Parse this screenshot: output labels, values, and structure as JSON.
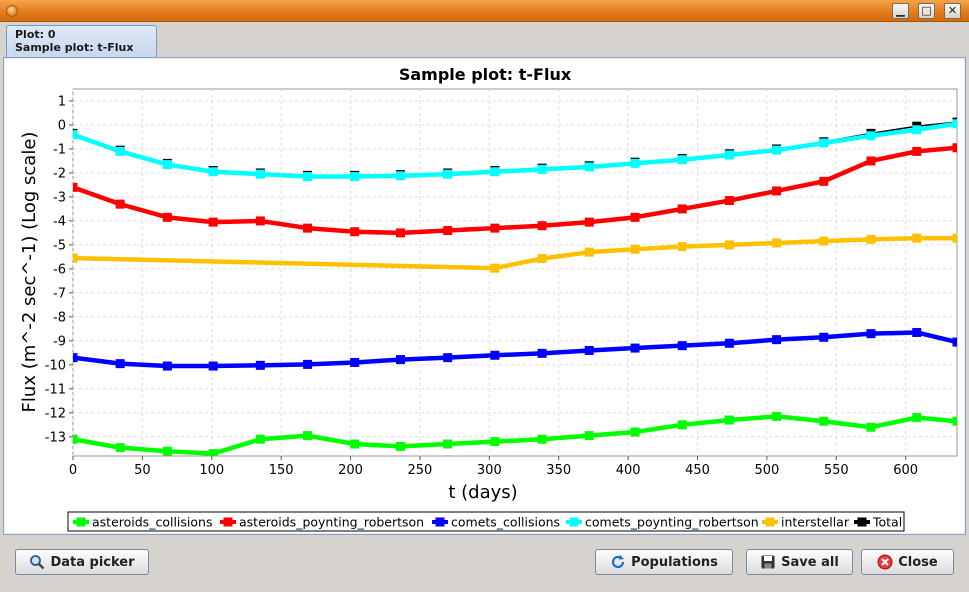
{
  "window": {
    "min_glyph": "▁",
    "max_glyph": "□",
    "close_glyph": "✕"
  },
  "tab": {
    "line1": "Plot: 0",
    "line2": "Sample plot: t-Flux"
  },
  "buttons": {
    "data_picker": "Data picker",
    "populations": "Populations",
    "save_all": "Save all",
    "close": "Close"
  },
  "chart_data": {
    "type": "line",
    "title": "Sample plot: t-Flux",
    "xlabel": "t (days)",
    "ylabel": "Flux (m^-2 sec^-1) (Log scale)",
    "xlim": [
      0,
      637
    ],
    "ylim": [
      -13.8,
      1.5
    ],
    "xticks": [
      0,
      50,
      100,
      150,
      200,
      250,
      300,
      350,
      400,
      450,
      500,
      550,
      600
    ],
    "yticks": [
      1,
      0,
      -1,
      -2,
      -3,
      -4,
      -5,
      -6,
      -7,
      -8,
      -9,
      -10,
      -11,
      -12,
      -13
    ],
    "grid": true,
    "legend_placement": "bottom",
    "x": [
      0,
      34,
      68,
      101,
      135,
      169,
      203,
      236,
      270,
      304,
      338,
      372,
      405,
      439,
      473,
      507,
      541,
      575,
      608,
      637
    ],
    "series": [
      {
        "name": "asteroids_collisions",
        "color": "#00ff00",
        "x": [
          0,
          34,
          68,
          101,
          135,
          169,
          203,
          236,
          270,
          304,
          338,
          372,
          405,
          439,
          473,
          507,
          541,
          575,
          608,
          637
        ],
        "values": [
          -13.1,
          -13.45,
          -13.6,
          -13.7,
          -13.1,
          -12.95,
          -13.3,
          -13.4,
          -13.3,
          -13.2,
          -13.1,
          -12.95,
          -12.8,
          -12.5,
          -12.3,
          -12.15,
          -12.35,
          -12.6,
          -12.2,
          -12.35
        ]
      },
      {
        "name": "asteroids_poynting_robertson",
        "color": "#ff0000",
        "x": [
          0,
          34,
          68,
          101,
          135,
          169,
          203,
          236,
          270,
          304,
          338,
          372,
          405,
          439,
          473,
          507,
          541,
          575,
          608,
          637
        ],
        "values": [
          -2.6,
          -3.3,
          -3.85,
          -4.05,
          -4.0,
          -4.3,
          -4.45,
          -4.5,
          -4.4,
          -4.3,
          -4.2,
          -4.05,
          -3.85,
          -3.5,
          -3.15,
          -2.75,
          -2.35,
          -1.5,
          -1.1,
          -0.95
        ]
      },
      {
        "name": "comets_collisions",
        "color": "#0000ff",
        "x": [
          0,
          34,
          68,
          101,
          135,
          169,
          203,
          236,
          270,
          304,
          338,
          372,
          405,
          439,
          473,
          507,
          541,
          575,
          608,
          637
        ],
        "values": [
          -9.7,
          -9.95,
          -10.05,
          -10.05,
          -10.02,
          -9.98,
          -9.9,
          -9.78,
          -9.7,
          -9.6,
          -9.52,
          -9.4,
          -9.3,
          -9.2,
          -9.1,
          -8.95,
          -8.85,
          -8.7,
          -8.65,
          -9.05
        ]
      },
      {
        "name": "comets_poynting_robertson",
        "color": "#00ffff",
        "x": [
          0,
          34,
          68,
          101,
          135,
          169,
          203,
          236,
          270,
          304,
          338,
          372,
          405,
          439,
          473,
          507,
          541,
          575,
          608,
          637
        ],
        "values": [
          -0.4,
          -1.1,
          -1.65,
          -1.95,
          -2.05,
          -2.15,
          -2.15,
          -2.12,
          -2.05,
          -1.95,
          -1.85,
          -1.75,
          -1.6,
          -1.45,
          -1.25,
          -1.05,
          -0.75,
          -0.45,
          -0.2,
          0.05
        ]
      },
      {
        "name": "interstellar",
        "color": "#ffc000",
        "x": [
          0,
          304,
          338,
          372,
          405,
          439,
          473,
          507,
          541,
          575,
          608,
          637
        ],
        "values": [
          -5.55,
          -5.97,
          -5.57,
          -5.3,
          -5.18,
          -5.07,
          -5.0,
          -4.92,
          -4.84,
          -4.77,
          -4.72,
          -4.72
        ]
      },
      {
        "name": "Total",
        "color": "#000000",
        "x": [
          0,
          34,
          68,
          101,
          135,
          169,
          203,
          236,
          270,
          304,
          338,
          372,
          405,
          439,
          473,
          507,
          541,
          575,
          608,
          637
        ],
        "values": [
          -0.35,
          -1.05,
          -1.6,
          -1.9,
          -2.0,
          -2.1,
          -2.1,
          -2.07,
          -2.0,
          -1.9,
          -1.8,
          -1.7,
          -1.55,
          -1.4,
          -1.2,
          -1.0,
          -0.7,
          -0.35,
          -0.05,
          0.12
        ]
      }
    ]
  }
}
